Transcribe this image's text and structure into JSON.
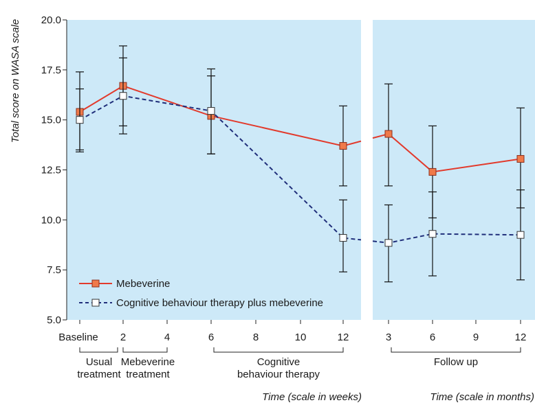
{
  "chart_data": {
    "type": "line",
    "ylabel": "Total score on WASA scale",
    "ylim": [
      5.0,
      20.0
    ],
    "yticks": [
      "5.0",
      "7.5",
      "10.0",
      "12.5",
      "15.0",
      "17.5",
      "20.0"
    ],
    "panels": [
      {
        "name": "weeks",
        "xlabel": "Time (scale in weeks)",
        "x_ticks": [
          "Baseline",
          "2",
          "4",
          "6",
          "8",
          "10",
          "12"
        ],
        "phases": [
          "Usual treatment",
          "Mebeverine treatment",
          "Cognitive behaviour therapy"
        ]
      },
      {
        "name": "months",
        "xlabel": "Time (scale in months)",
        "x_ticks": [
          "3",
          "6",
          "9",
          "12"
        ],
        "phases": [
          "Follow up"
        ]
      }
    ],
    "series": [
      {
        "name": "Mebeverine",
        "color": "#e23a2c",
        "marker_fill": "#f07a4a",
        "line_style": "solid",
        "points": [
          {
            "panel": 0,
            "x": "Baseline",
            "y": 15.4,
            "err_low": 13.5,
            "err_high": 17.4
          },
          {
            "panel": 0,
            "x": "2",
            "y": 16.7,
            "err_low": 14.7,
            "err_high": 18.7
          },
          {
            "panel": 0,
            "x": "6",
            "y": 15.2,
            "err_low": 13.3,
            "err_high": 17.2
          },
          {
            "panel": 0,
            "x": "12",
            "y": 13.7,
            "err_low": 11.7,
            "err_high": 15.7
          },
          {
            "panel": 1,
            "x": "3",
            "y": 14.3,
            "err_low": 11.7,
            "err_high": 16.8
          },
          {
            "panel": 1,
            "x": "6",
            "y": 12.4,
            "err_low": 10.1,
            "err_high": 14.7
          },
          {
            "panel": 1,
            "x": "12",
            "y": 13.05,
            "err_low": 10.6,
            "err_high": 15.6
          }
        ]
      },
      {
        "name": "Cognitive behaviour therapy plus mebeverine",
        "color": "#1f2e7a",
        "marker_fill": "#ffffff",
        "line_style": "dashed",
        "points": [
          {
            "panel": 0,
            "x": "Baseline",
            "y": 15.0,
            "err_low": 13.4,
            "err_high": 16.55
          },
          {
            "panel": 0,
            "x": "2",
            "y": 16.2,
            "err_low": 14.3,
            "err_high": 18.1
          },
          {
            "panel": 0,
            "x": "6",
            "y": 15.45,
            "err_low": 13.3,
            "err_high": 17.55
          },
          {
            "panel": 0,
            "x": "12",
            "y": 9.1,
            "err_low": 7.4,
            "err_high": 11.0
          },
          {
            "panel": 1,
            "x": "3",
            "y": 8.85,
            "err_low": 6.9,
            "err_high": 10.75
          },
          {
            "panel": 1,
            "x": "6",
            "y": 9.3,
            "err_low": 7.2,
            "err_high": 11.4
          },
          {
            "panel": 1,
            "x": "12",
            "y": 9.25,
            "err_low": 7.0,
            "err_high": 11.5
          }
        ]
      }
    ],
    "legend_position": "bottom-left",
    "background_color": "#cde9f8",
    "grid": false
  }
}
